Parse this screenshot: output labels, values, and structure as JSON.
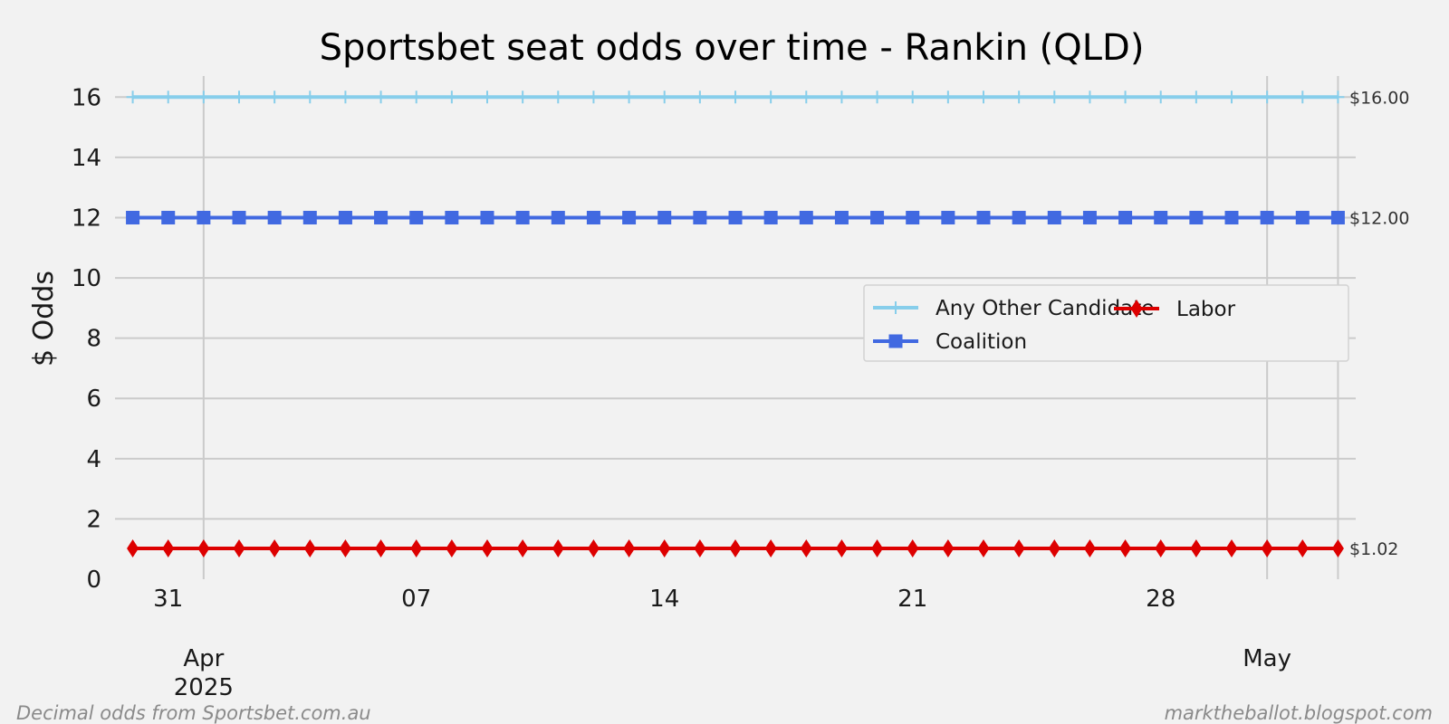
{
  "chart_data": {
    "type": "line",
    "title": "Sportsbet seat odds over time - Rankin (QLD)",
    "ylabel": "$ Odds",
    "xlabel": "",
    "ylim": [
      0,
      16.7
    ],
    "yticks": [
      0,
      2,
      4,
      6,
      8,
      10,
      12,
      14,
      16
    ],
    "x_range": [
      "2025-03-29T12:00",
      "2025-05-03T12:00"
    ],
    "x_day_ticks": [
      {
        "date": "2025-03-31",
        "label": "31"
      },
      {
        "date": "2025-04-07",
        "label": "07"
      },
      {
        "date": "2025-04-14",
        "label": "14"
      },
      {
        "date": "2025-04-21",
        "label": "21"
      },
      {
        "date": "2025-04-28",
        "label": "28"
      }
    ],
    "x_month_ticks": [
      {
        "date": "2025-04-01",
        "label": "Apr",
        "sublabel": "2025"
      },
      {
        "date": "2025-05-01",
        "label": "May",
        "sublabel": ""
      }
    ],
    "x_start": "2025-03-30",
    "x_end": "2025-05-03",
    "grid": true,
    "legend_position": "center-right",
    "series": [
      {
        "name": "Any Other Candidate",
        "color": "#87ceeb",
        "marker": "plus",
        "values": [
          16,
          16,
          16,
          16,
          16,
          16,
          16,
          16,
          16,
          16,
          16,
          16,
          16,
          16,
          16,
          16,
          16,
          16,
          16,
          16,
          16,
          16,
          16,
          16,
          16,
          16,
          16,
          16,
          16,
          16,
          16,
          16,
          16,
          16,
          16
        ],
        "end_label": "$16.00"
      },
      {
        "name": "Coalition",
        "color": "#4169e1",
        "marker": "square",
        "values": [
          12,
          12,
          12,
          12,
          12,
          12,
          12,
          12,
          12,
          12,
          12,
          12,
          12,
          12,
          12,
          12,
          12,
          12,
          12,
          12,
          12,
          12,
          12,
          12,
          12,
          12,
          12,
          12,
          12,
          12,
          12,
          12,
          12,
          12,
          12
        ],
        "end_label": "$12.00"
      },
      {
        "name": "Labor",
        "color": "#dd0000",
        "marker": "diamond",
        "values": [
          1.02,
          1.02,
          1.02,
          1.02,
          1.02,
          1.02,
          1.02,
          1.02,
          1.02,
          1.02,
          1.02,
          1.02,
          1.02,
          1.02,
          1.02,
          1.02,
          1.02,
          1.02,
          1.02,
          1.02,
          1.02,
          1.02,
          1.02,
          1.02,
          1.02,
          1.02,
          1.02,
          1.02,
          1.02,
          1.02,
          1.02,
          1.02,
          1.02,
          1.02,
          1.02
        ],
        "end_label": "$1.02"
      }
    ]
  },
  "footer": {
    "left": "Decimal odds from Sportsbet.com.au",
    "right": "marktheballot.blogspot.com"
  }
}
